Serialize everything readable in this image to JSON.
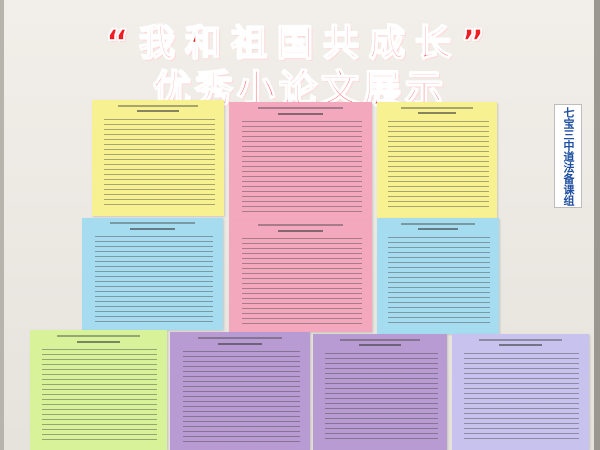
{
  "banner": {
    "title_line1": "“我和祖国共成长”",
    "title_line2": "优秀小论文展示"
  },
  "sidebar_label": "七宝三中道法备课组",
  "colors": {
    "title_red": "#ef1e24",
    "sidebar_blue": "#1f4fa0",
    "paper_yellow": "#f7f191",
    "paper_pink": "#f3a8bd",
    "paper_cyan": "#a6dcef",
    "paper_green": "#d8f29a",
    "paper_purple": "#b89bd2",
    "paper_lavender": "#c7c2ee"
  },
  "papers": [
    {
      "color": "yellow"
    },
    {
      "color": "pink"
    },
    {
      "color": "yellow"
    },
    {
      "color": "cyan"
    },
    {
      "color": "pink"
    },
    {
      "color": "cyan"
    },
    {
      "color": "green"
    },
    {
      "color": "purple"
    },
    {
      "color": "purple"
    },
    {
      "color": "lavender"
    }
  ]
}
